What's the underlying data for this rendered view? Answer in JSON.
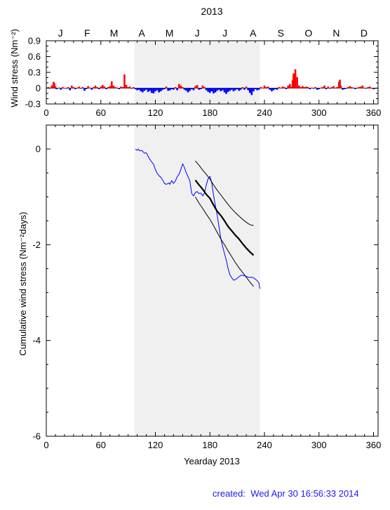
{
  "chart_data": [
    {
      "type": "bar",
      "title": "2013",
      "ylabel": "Wind stress (Nm⁻²)",
      "xlim": [
        0,
        365
      ],
      "ylim": [
        -0.3,
        0.9
      ],
      "yticks": [
        "0.9",
        "0.6",
        "0.3",
        "0",
        "-0.3"
      ],
      "yticks_values": [
        0.9,
        0.6,
        0.3,
        0,
        -0.3
      ],
      "xticks": [
        "0",
        "60",
        "120",
        "180",
        "240",
        "300",
        "360"
      ],
      "xticks_values": [
        0,
        60,
        120,
        180,
        240,
        300,
        360
      ],
      "months": [
        "J",
        "F",
        "M",
        "A",
        "M",
        "J",
        "J",
        "A",
        "S",
        "O",
        "N",
        "D"
      ],
      "month_centers": [
        15.5,
        45,
        74.5,
        105,
        135.5,
        166,
        196.5,
        227.5,
        258,
        288.5,
        319,
        349.5
      ],
      "shaded_days": [
        97,
        235
      ],
      "positive_color": "#ff0000",
      "negative_color": "#0000ff",
      "series": [
        {
          "day": [
            2,
            4,
            6,
            8,
            9,
            10,
            11,
            12,
            14,
            16,
            18,
            20,
            22,
            24,
            26,
            28,
            30,
            32,
            34,
            36,
            38,
            40,
            42,
            44,
            46,
            48,
            50,
            52,
            54,
            56,
            58,
            60,
            62,
            64,
            66,
            68,
            70,
            72,
            74,
            76,
            78,
            80,
            82,
            84,
            86,
            88,
            90,
            92,
            94,
            96,
            98,
            100,
            102,
            104,
            106,
            108,
            110,
            112,
            114,
            116,
            118,
            120,
            122,
            124,
            126,
            128,
            130,
            132,
            134,
            136,
            138,
            140,
            142,
            144,
            146,
            148,
            150,
            152,
            154,
            156,
            158,
            160,
            162,
            164,
            166,
            168,
            170,
            172,
            174,
            176,
            178,
            180,
            182,
            184,
            186,
            188,
            190,
            192,
            194,
            196,
            198,
            200,
            202,
            204,
            206,
            208,
            210,
            212,
            214,
            216,
            218,
            220,
            222,
            224,
            226,
            228,
            230,
            232,
            234,
            236,
            238,
            240,
            242,
            244,
            246,
            248,
            250,
            252,
            254,
            256,
            258,
            260,
            262,
            264,
            266,
            268,
            270,
            271,
            272,
            273,
            274,
            276,
            278,
            280,
            282,
            284,
            286,
            288,
            290,
            292,
            294,
            296,
            298,
            300,
            302,
            304,
            306,
            308,
            310,
            312,
            314,
            316,
            318,
            320,
            322,
            323,
            324,
            326,
            328,
            330,
            332,
            334,
            336,
            338,
            340,
            342,
            344,
            346,
            348,
            350,
            352,
            354,
            356,
            358,
            360,
            362,
            364
          ],
          "value": [
            0.02,
            0.01,
            0.05,
            0.12,
            0.09,
            0.03,
            -0.02,
            -0.01,
            0.01,
            -0.03,
            0.02,
            0.0,
            -0.01,
            0.02,
            -0.04,
            0.05,
            0.02,
            -0.02,
            0.01,
            0.03,
            -0.01,
            0.02,
            -0.05,
            -0.02,
            0.04,
            0.01,
            -0.03,
            0.02,
            0.05,
            0.02,
            -0.02,
            0.03,
            0.06,
            0.03,
            -0.02,
            0.02,
            0.04,
            0.13,
            0.05,
            0.02,
            0.01,
            -0.02,
            0.03,
            0.02,
            0.26,
            0.06,
            0.02,
            0.03,
            -0.01,
            0.02,
            -0.02,
            -0.04,
            -0.03,
            -0.06,
            -0.08,
            -0.05,
            -0.03,
            -0.07,
            -0.05,
            -0.09,
            -0.1,
            -0.06,
            -0.04,
            -0.08,
            -0.06,
            -0.03,
            -0.02,
            0.03,
            -0.05,
            -0.04,
            -0.02,
            -0.03,
            0.02,
            -0.04,
            0.08,
            0.05,
            0.02,
            -0.03,
            -0.05,
            -0.08,
            -0.05,
            -0.02,
            -0.04,
            0.04,
            0.06,
            -0.03,
            -0.02,
            0.05,
            0.02,
            -0.04,
            -0.07,
            -0.09,
            -0.06,
            -0.1,
            -0.08,
            -0.05,
            -0.03,
            -0.06,
            -0.04,
            -0.08,
            -0.11,
            -0.07,
            -0.05,
            -0.03,
            -0.06,
            -0.04,
            -0.02,
            -0.05,
            -0.03,
            0.02,
            -0.03,
            0.03,
            -0.04,
            -0.09,
            -0.13,
            -0.06,
            -0.02,
            -0.04,
            -0.03,
            0.02,
            0.01,
            0.05,
            0.02,
            0.03,
            -0.03,
            -0.06,
            -0.04,
            -0.02,
            -0.03,
            0.02,
            0.01,
            0.03,
            0.02,
            -0.02,
            0.05,
            0.08,
            0.03,
            0.15,
            0.28,
            0.24,
            0.36,
            0.21,
            0.05,
            0.02,
            0.04,
            0.02,
            0.03,
            0.02,
            -0.02,
            0.01,
            -0.01,
            0.02,
            -0.03,
            -0.02,
            0.01,
            0.02,
            0.05,
            -0.02,
            0.03,
            -0.01,
            0.02,
            0.04,
            0.01,
            0.02,
            0.12,
            0.16,
            0.05,
            -0.03,
            -0.02,
            -0.01,
            0.02,
            0.04,
            0.02,
            0.01,
            -0.02,
            0.01,
            0.02,
            0.03,
            0.05,
            0.01,
            -0.01,
            0.02,
            0.03,
            0.0,
            -0.02,
            -0.01,
            0.01,
            0.0
          ]
        }
      ]
    },
    {
      "type": "line",
      "xlabel": "Yearday 2013",
      "ylabel": "Cumulative wind stress (Nm⁻²days)",
      "xlim": [
        0,
        365
      ],
      "ylim": [
        -6,
        0.5
      ],
      "xticks": [
        "0",
        "60",
        "120",
        "180",
        "240",
        "300",
        "360"
      ],
      "xticks_values": [
        0,
        60,
        120,
        180,
        240,
        300,
        360
      ],
      "yticks": [
        "0",
        "-2",
        "-4",
        "-6"
      ],
      "yticks_values": [
        0,
        -2,
        -4,
        -6
      ],
      "shaded_days": [
        97,
        235
      ],
      "series": [
        {
          "color": "#0000ff",
          "width": 1,
          "x": [
            98,
            100,
            101,
            103,
            105,
            107,
            108,
            110,
            112,
            114,
            116,
            118,
            120,
            122,
            124,
            126,
            128,
            130,
            132,
            134,
            135,
            136,
            138,
            140,
            142,
            144,
            146,
            148,
            150,
            152,
            154,
            156,
            158,
            160,
            162,
            164,
            166,
            168,
            170,
            172,
            174,
            176,
            178,
            180,
            182,
            184,
            186,
            188,
            190,
            192,
            194,
            196,
            198,
            200,
            202,
            204,
            206,
            208,
            210,
            212,
            214,
            216,
            218,
            220,
            222,
            224,
            226,
            228,
            230,
            232,
            234,
            235
          ],
          "y": [
            0.0,
            -0.03,
            0.0,
            -0.04,
            -0.03,
            -0.07,
            -0.09,
            -0.08,
            -0.15,
            -0.22,
            -0.27,
            -0.32,
            -0.43,
            -0.51,
            -0.56,
            -0.59,
            -0.65,
            -0.72,
            -0.74,
            -0.72,
            -0.71,
            -0.74,
            -0.66,
            -0.72,
            -0.67,
            -0.58,
            -0.53,
            -0.43,
            -0.31,
            -0.39,
            -0.5,
            -0.58,
            -0.68,
            -0.93,
            -0.98,
            -0.91,
            -0.89,
            -0.93,
            -0.92,
            -0.98,
            -0.92,
            -0.75,
            -0.62,
            -0.57,
            -0.71,
            -0.96,
            -1.18,
            -1.38,
            -1.62,
            -1.87,
            -2.04,
            -2.18,
            -2.32,
            -2.5,
            -2.63,
            -2.69,
            -2.74,
            -2.73,
            -2.7,
            -2.67,
            -2.64,
            -2.64,
            -2.65,
            -2.66,
            -2.68,
            -2.68,
            -2.68,
            -2.69,
            -2.72,
            -2.75,
            -2.8,
            -2.92
          ]
        },
        {
          "color": "#000000",
          "width": 2.2,
          "x": [
            164,
            168,
            172,
            176,
            180,
            184,
            188,
            192,
            196,
            200,
            204,
            208,
            212,
            216,
            220,
            224,
            228
          ],
          "y": [
            -0.65,
            -0.75,
            -0.84,
            -0.95,
            -1.03,
            -1.17,
            -1.3,
            -1.39,
            -1.5,
            -1.62,
            -1.71,
            -1.8,
            -1.88,
            -1.98,
            -2.07,
            -2.15,
            -2.22
          ]
        },
        {
          "color": "#000000",
          "width": 1,
          "x": [
            164,
            168,
            172,
            176,
            180,
            184,
            188,
            192,
            196,
            200,
            204,
            208,
            212,
            216,
            220,
            224,
            228
          ],
          "y": [
            -0.25,
            -0.34,
            -0.44,
            -0.53,
            -0.63,
            -0.75,
            -0.86,
            -0.96,
            -1.06,
            -1.16,
            -1.25,
            -1.33,
            -1.4,
            -1.47,
            -1.53,
            -1.58,
            -1.6
          ]
        },
        {
          "color": "#000000",
          "width": 1,
          "x": [
            164,
            168,
            172,
            176,
            180,
            184,
            188,
            192,
            196,
            200,
            204,
            208,
            212,
            216,
            220,
            224,
            228
          ],
          "y": [
            -1.0,
            -1.13,
            -1.24,
            -1.36,
            -1.47,
            -1.6,
            -1.74,
            -1.88,
            -2.0,
            -2.13,
            -2.25,
            -2.37,
            -2.48,
            -2.58,
            -2.68,
            -2.78,
            -2.87
          ]
        }
      ]
    }
  ],
  "footer": {
    "created": "created:  Wed Apr 30 16:56:33 2014"
  }
}
